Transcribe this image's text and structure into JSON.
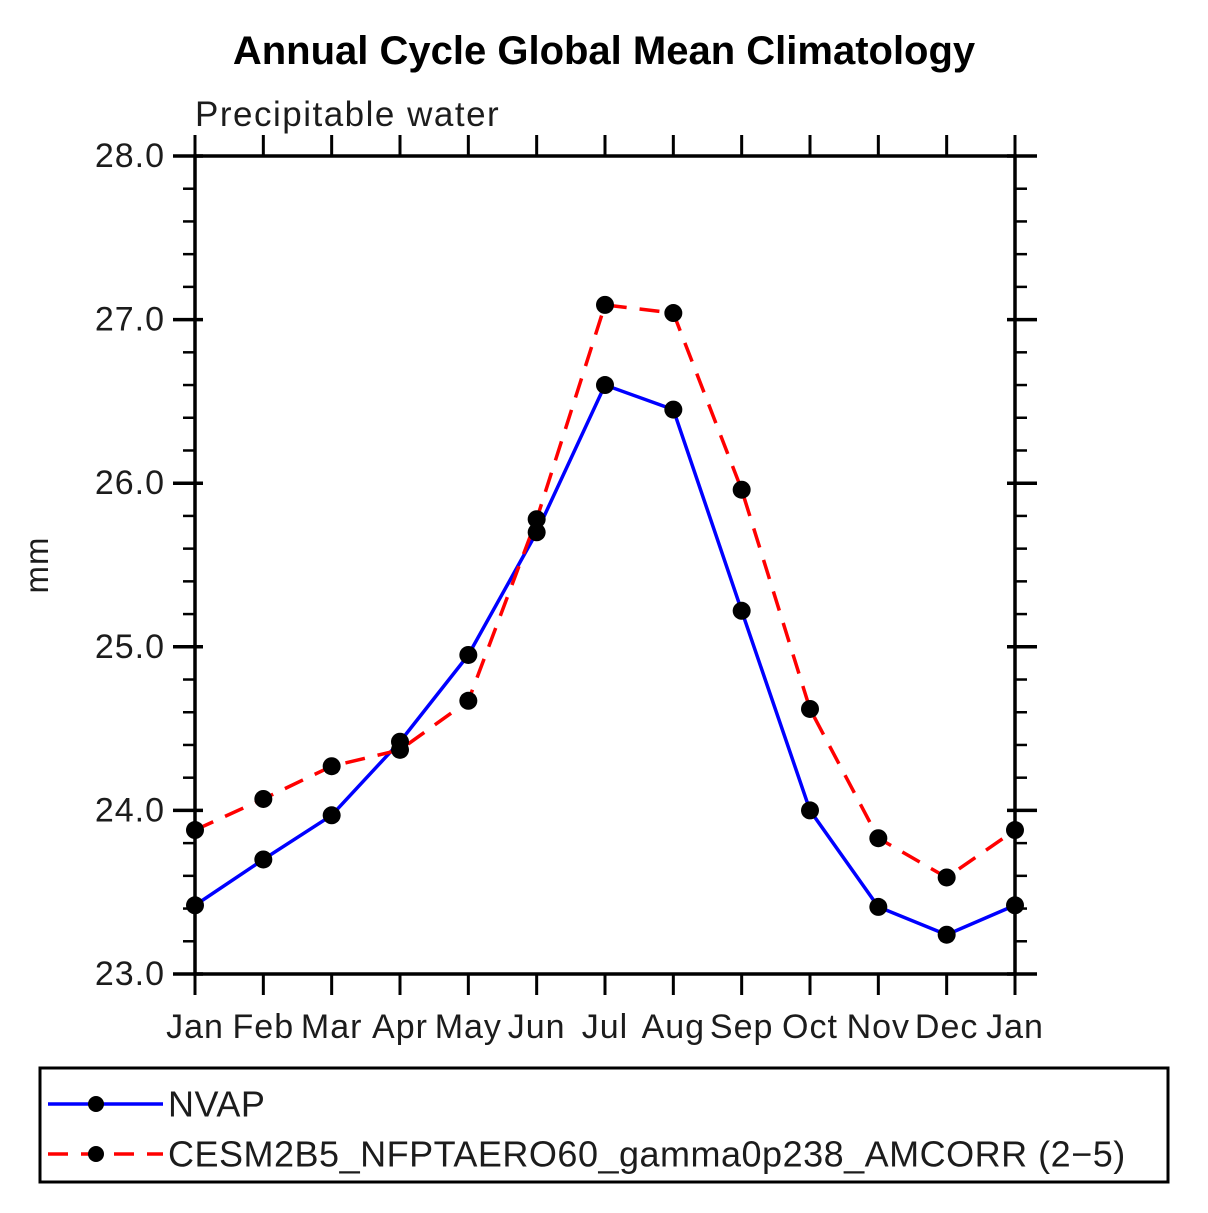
{
  "chart_data": {
    "type": "line",
    "title": "Annual Cycle Global Mean Climatology",
    "subtitle": "Precipitable water",
    "ylabel": "mm",
    "xlabel": "",
    "categories": [
      "Jan",
      "Feb",
      "Mar",
      "Apr",
      "May",
      "Jun",
      "Jul",
      "Aug",
      "Sep",
      "Oct",
      "Nov",
      "Dec",
      "Jan"
    ],
    "series": [
      {
        "name": "NVAP",
        "line_style": "solid",
        "color": "#0000ff",
        "marker": "circle",
        "marker_color": "#000000",
        "values": [
          23.42,
          23.7,
          23.97,
          24.42,
          24.95,
          25.7,
          26.6,
          26.45,
          25.22,
          24.0,
          23.41,
          23.24,
          23.42
        ]
      },
      {
        "name": "CESM2B5_NFPTAERO60_gamma0p238_AMCORR (2−5)",
        "line_style": "dashed",
        "color": "#ff0000",
        "marker": "circle",
        "marker_color": "#000000",
        "values": [
          23.88,
          24.07,
          24.27,
          24.37,
          24.67,
          25.78,
          27.09,
          27.04,
          25.96,
          24.62,
          23.83,
          23.59,
          23.88
        ]
      }
    ],
    "ylim": [
      23.0,
      28.0
    ],
    "ytick_labels": [
      "23.0",
      "24.0",
      "25.0",
      "26.0",
      "27.0",
      "28.0"
    ],
    "ytick_interval": 1.0,
    "yminor_interval": 0.2,
    "grid": false,
    "legend_position": "bottom",
    "axis_color": "#000000"
  }
}
